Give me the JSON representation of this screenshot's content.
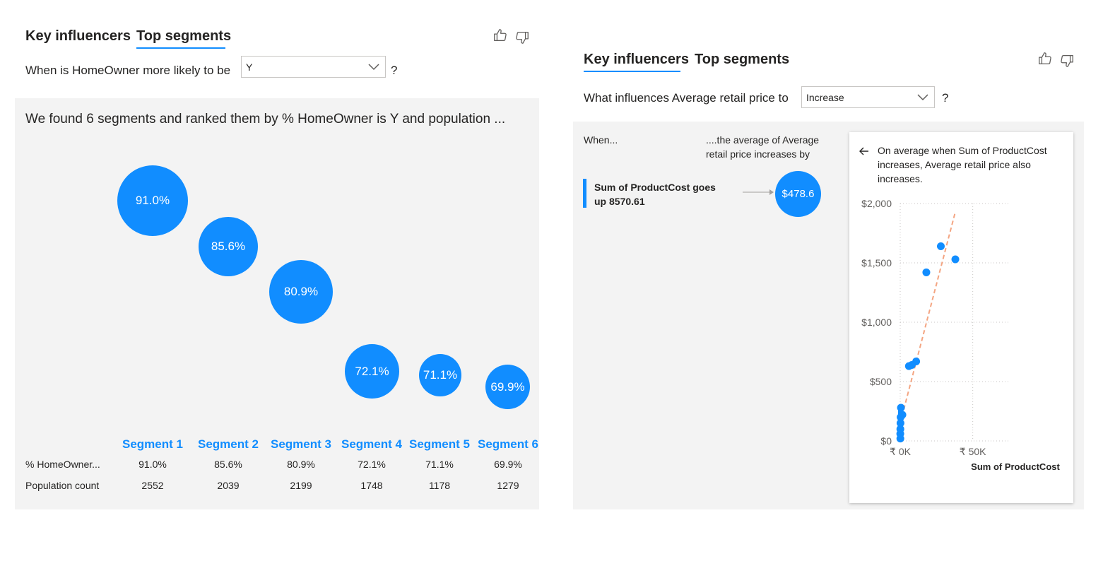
{
  "left": {
    "tabs": [
      {
        "label": "Key influencers"
      },
      {
        "label": "Top segments"
      }
    ],
    "question_prefix": "When is HomeOwner more likely to be",
    "dropdown_value": "Y",
    "question_suffix": "?",
    "summary": "We found 6 segments and ranked them by % HomeOwner is Y and population ...",
    "segments": [
      {
        "label": "Segment 1",
        "percent": "91.0%",
        "population": "2552"
      },
      {
        "label": "Segment 2",
        "percent": "85.6%",
        "population": "2039"
      },
      {
        "label": "Segment 3",
        "percent": "80.9%",
        "population": "2199"
      },
      {
        "label": "Segment 4",
        "percent": "72.1%",
        "population": "1748"
      },
      {
        "label": "Segment 5",
        "percent": "71.1%",
        "population": "1178"
      },
      {
        "label": "Segment 6",
        "percent": "69.9%",
        "population": "1279"
      }
    ],
    "row_labels": {
      "percent": "% HomeOwner...",
      "population": "Population count"
    }
  },
  "right": {
    "tabs": [
      {
        "label": "Key influencers"
      },
      {
        "label": "Top segments"
      }
    ],
    "question_prefix": "What influences Average retail price to",
    "dropdown_value": "Increase",
    "question_suffix": "?",
    "col_when": "When...",
    "col_then_line1": "....the average of Average",
    "col_then_line2": "retail price increases by",
    "influencer_line1": "Sum of ProductCost goes",
    "influencer_line2": "up 8570.61",
    "influencer_value": "$478.6",
    "card_line1": "On average when Sum of ProductCost",
    "card_line2": "increases, Average retail price also",
    "card_line3": "increases.",
    "chart_data": {
      "type": "scatter",
      "xlabel": "Sum of ProductCost",
      "ylabel": "",
      "x_ticks": [
        "₹ 0K",
        "₹ 50K"
      ],
      "y_ticks": [
        "$2,000",
        "$1,500",
        "$1,000",
        "$500",
        "$0"
      ],
      "xlim": [
        0,
        75000
      ],
      "ylim": [
        0,
        2000
      ],
      "points": [
        {
          "x": 28000,
          "y": 1640
        },
        {
          "x": 38000,
          "y": 1530
        },
        {
          "x": 18000,
          "y": 1420
        },
        {
          "x": 11000,
          "y": 670
        },
        {
          "x": 8000,
          "y": 640
        },
        {
          "x": 6000,
          "y": 630
        },
        {
          "x": 1500,
          "y": 220
        },
        {
          "x": 500,
          "y": 280
        },
        {
          "x": 300,
          "y": 200
        },
        {
          "x": 200,
          "y": 150
        },
        {
          "x": 100,
          "y": 100
        },
        {
          "x": 50,
          "y": 60
        },
        {
          "x": 100,
          "y": 20
        }
      ],
      "trend": [
        {
          "x": 0,
          "y": 150
        },
        {
          "x": 38000,
          "y": 1930
        }
      ],
      "grid": true,
      "point_color": "#118dff",
      "trend_color": "#f4a582"
    }
  },
  "colors": {
    "accent": "#118dff",
    "panel": "#f3f3f3",
    "text": "#252423"
  }
}
